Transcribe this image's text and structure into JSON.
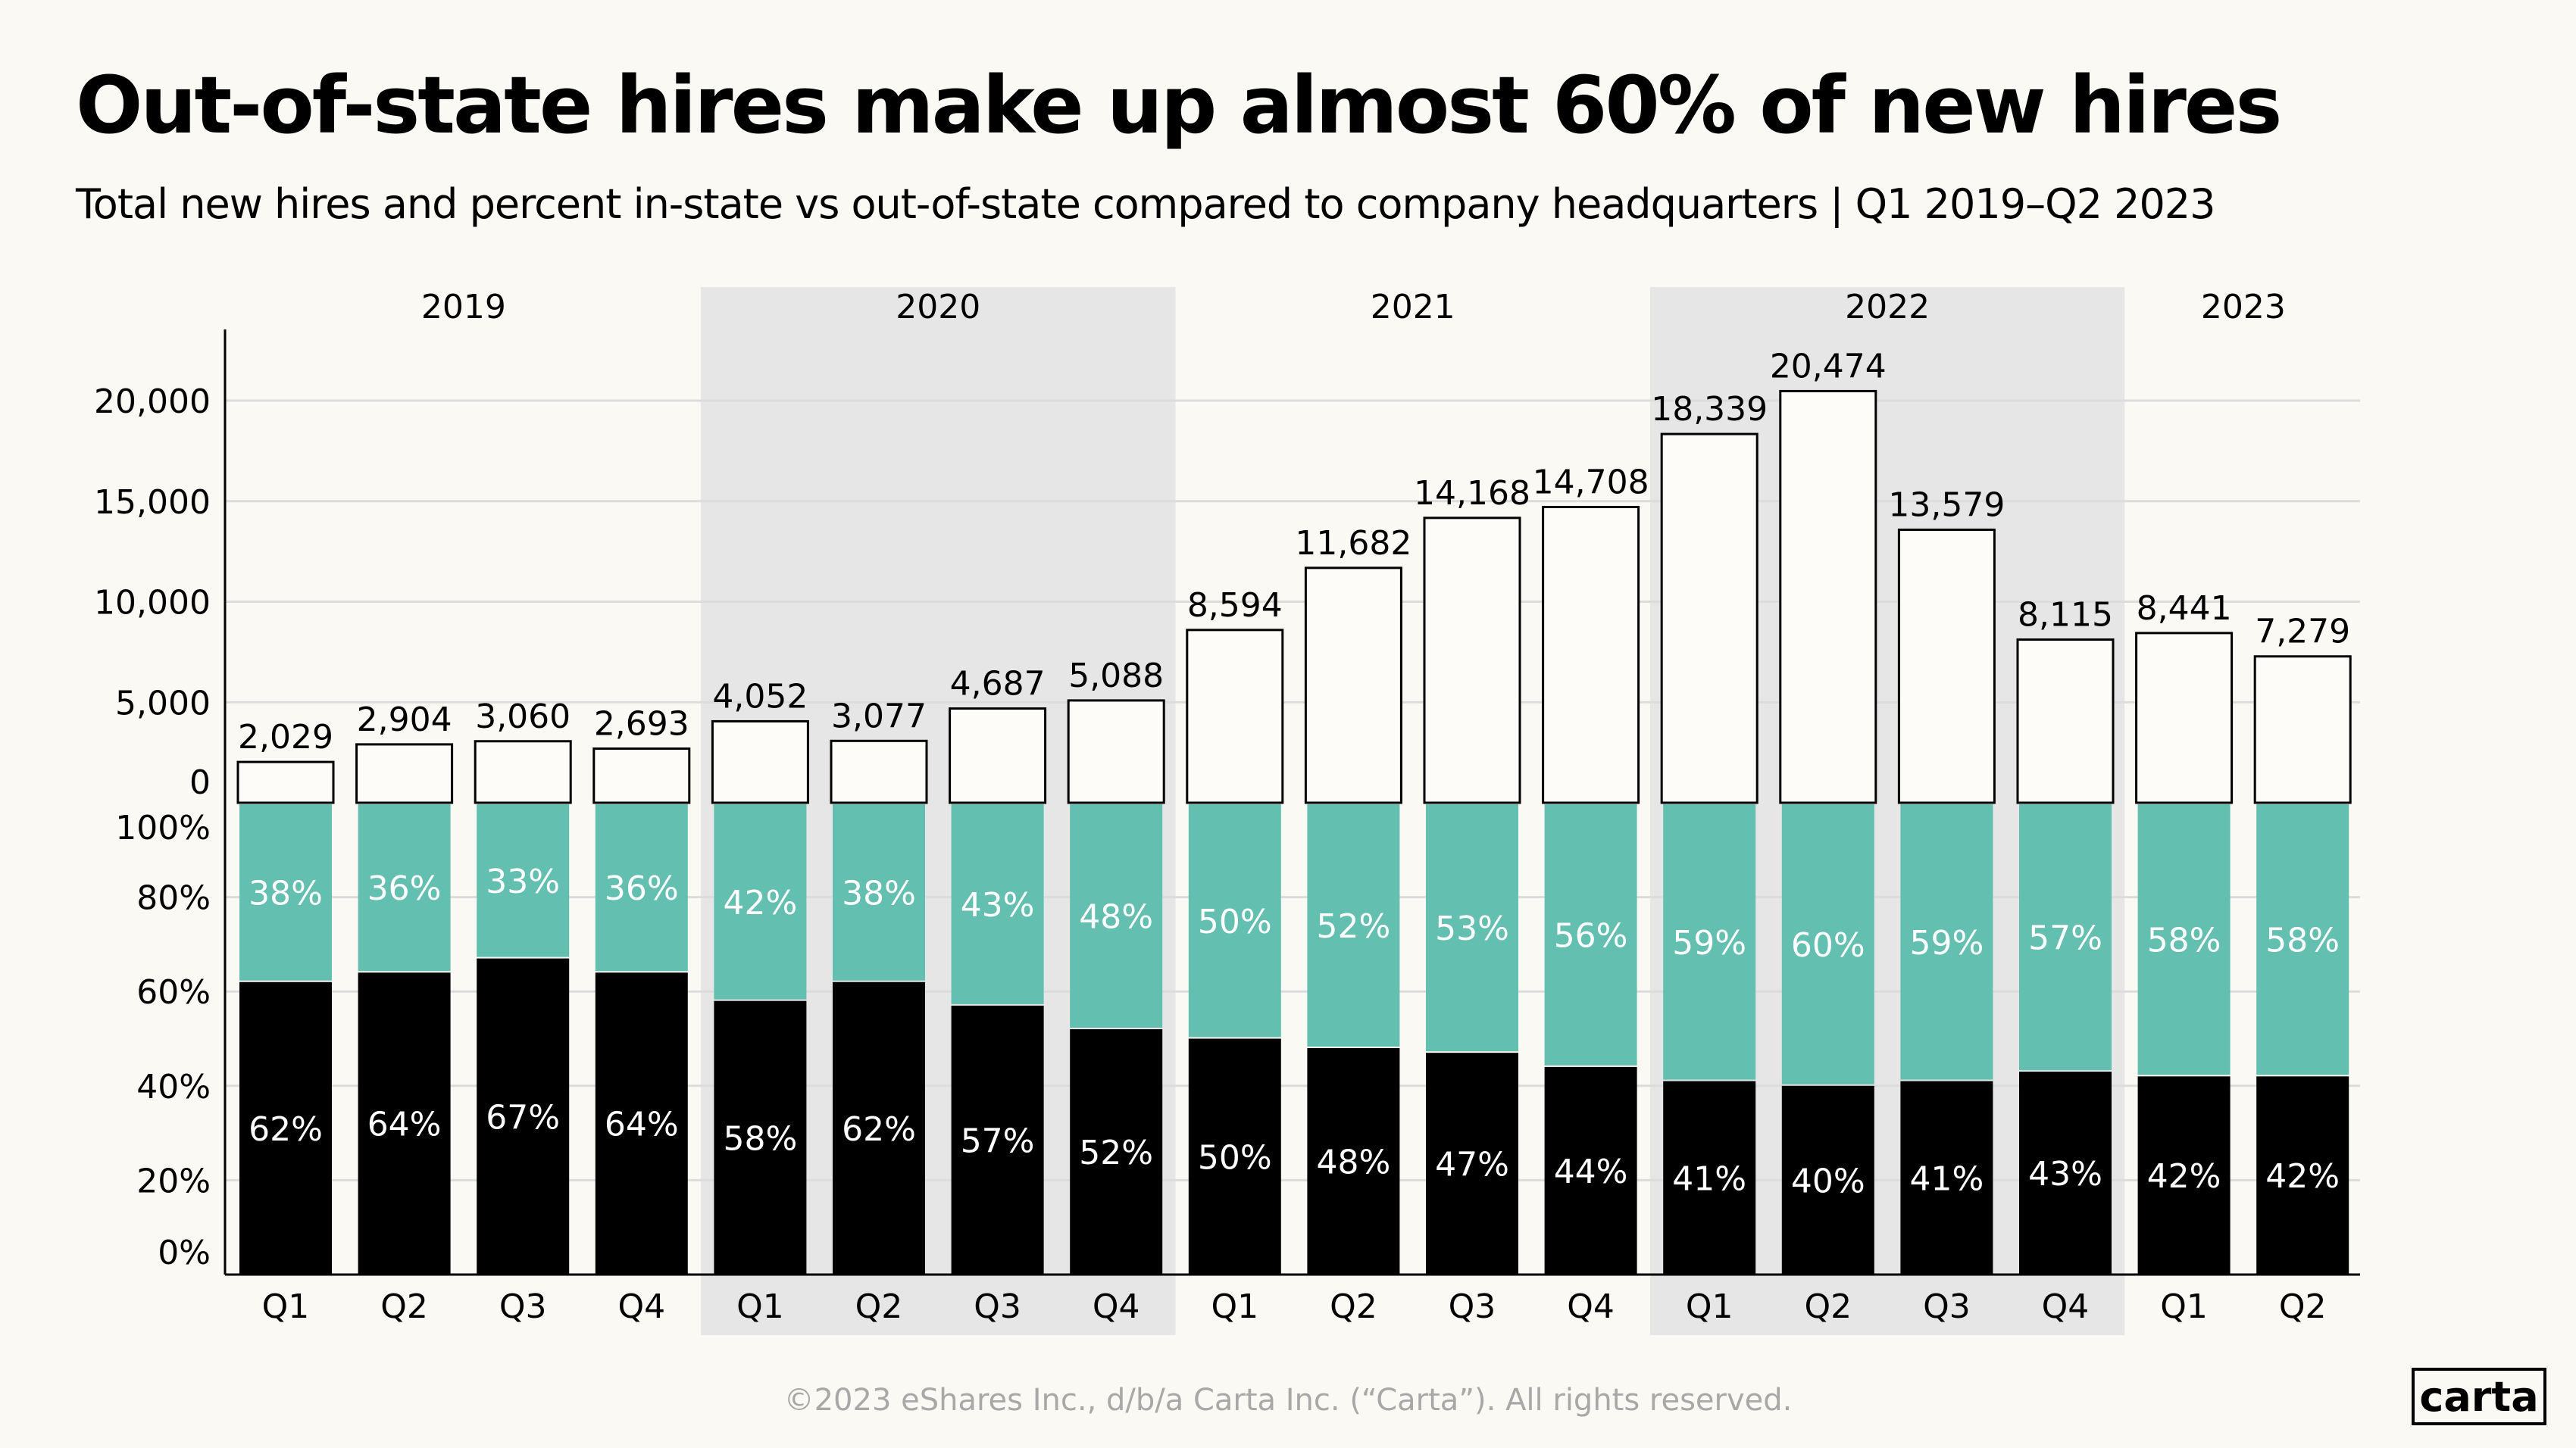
{
  "header": {
    "title": "Out-of-state hires make up almost 60% of new hires",
    "subtitle": "Total new hires and percent in-state vs out-of-state compared to company headquarters  |  Q1 2019–Q2 2023"
  },
  "footer": {
    "copyright": "©2023 eShares Inc., d/b/a Carta Inc. (“Carta”). All rights reserved."
  },
  "logo": {
    "text": "carta"
  },
  "colors": {
    "background": "#fbf9f4",
    "teal": "#63bfb0",
    "black": "#000000",
    "year_band": "#e6e6e6"
  },
  "chart_data": [
    {
      "type": "bar",
      "years": [
        {
          "label": "2019",
          "quarters": 4,
          "shaded": false
        },
        {
          "label": "2020",
          "quarters": 4,
          "shaded": true
        },
        {
          "label": "2021",
          "quarters": 4,
          "shaded": false
        },
        {
          "label": "2022",
          "quarters": 4,
          "shaded": true
        },
        {
          "label": "2023",
          "quarters": 2,
          "shaded": false
        }
      ],
      "categories": [
        "Q1",
        "Q2",
        "Q3",
        "Q4",
        "Q1",
        "Q2",
        "Q3",
        "Q4",
        "Q1",
        "Q2",
        "Q3",
        "Q4",
        "Q1",
        "Q2",
        "Q3",
        "Q4",
        "Q1",
        "Q2"
      ],
      "values": [
        2029,
        2904,
        3060,
        2693,
        4052,
        3077,
        4687,
        5088,
        8594,
        11682,
        14168,
        14708,
        18339,
        20474,
        13579,
        8115,
        8441,
        7279
      ],
      "data_labels": [
        "2,029",
        "2,904",
        "3,060",
        "2,693",
        "4,052",
        "3,077",
        "4,687",
        "5,088",
        "8,594",
        "11,682",
        "14,168",
        "14,708",
        "18,339",
        "20,474",
        "13,579",
        "8,115",
        "8,441",
        "7,279"
      ],
      "ylim": [
        0,
        22000
      ],
      "yticks": [
        0,
        5000,
        10000,
        15000,
        20000
      ],
      "ytick_labels": [
        "0",
        "5,000",
        "10,000",
        "15,000",
        "20,000"
      ],
      "grid": true
    },
    {
      "type": "stacked_bar_100",
      "categories": [
        "Q1",
        "Q2",
        "Q3",
        "Q4",
        "Q1",
        "Q2",
        "Q3",
        "Q4",
        "Q1",
        "Q2",
        "Q3",
        "Q4",
        "Q1",
        "Q2",
        "Q3",
        "Q4",
        "Q1",
        "Q2"
      ],
      "series": [
        {
          "color": "#000000",
          "values": [
            62,
            64,
            67,
            64,
            58,
            62,
            57,
            52,
            50,
            48,
            47,
            44,
            41,
            40,
            41,
            43,
            42,
            42
          ]
        },
        {
          "color": "#63bfb0",
          "values": [
            38,
            36,
            33,
            36,
            42,
            38,
            43,
            48,
            50,
            52,
            53,
            56,
            59,
            60,
            59,
            57,
            58,
            58
          ]
        }
      ],
      "ylim": [
        0,
        100
      ],
      "yticks": [
        0,
        20,
        40,
        60,
        80,
        100
      ],
      "ytick_labels": [
        "0%",
        "20%",
        "40%",
        "60%",
        "80%",
        "100%"
      ],
      "grid": true
    }
  ]
}
